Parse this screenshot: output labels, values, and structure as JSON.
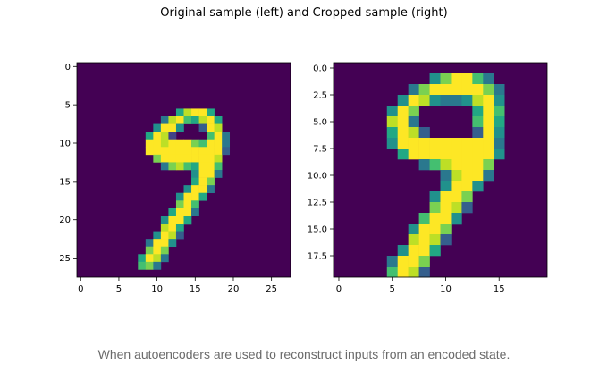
{
  "figure_title": "Original sample (left) and Cropped sample (right)",
  "caption": "When autoencoders are used to reconstruct inputs from an encoded state.",
  "colormap": [
    "#440154",
    "#482475",
    "#414487",
    "#355f8d",
    "#2a788e",
    "#21918c",
    "#22a884",
    "#44bf70",
    "#7ad151",
    "#bddf26",
    "#fde725"
  ],
  "chart_data": [
    {
      "type": "heatmap",
      "title": "Original sample",
      "grid_size": [
        28,
        28
      ],
      "colormap": "viridis",
      "xlim": [
        -0.5,
        27.5
      ],
      "ylim": [
        27.5,
        -0.5
      ],
      "x_ticks": [
        0,
        5,
        10,
        15,
        20,
        25
      ],
      "y_ticks": [
        0,
        5,
        10,
        15,
        20,
        25
      ],
      "x_tick_labels": [
        "0",
        "5",
        "10",
        "15",
        "20",
        "25"
      ],
      "y_tick_labels": [
        "0",
        "5",
        "10",
        "15",
        "20",
        "25"
      ],
      "nonzero_pixels": [
        [
          6,
          13,
          0.6
        ],
        [
          6,
          14,
          0.9
        ],
        [
          6,
          15,
          1
        ],
        [
          6,
          16,
          1
        ],
        [
          6,
          17,
          0.6
        ],
        [
          7,
          11,
          0.4
        ],
        [
          7,
          12,
          0.9
        ],
        [
          7,
          13,
          1
        ],
        [
          7,
          14,
          0.7
        ],
        [
          7,
          15,
          0.6
        ],
        [
          7,
          16,
          0.9
        ],
        [
          7,
          17,
          1
        ],
        [
          7,
          18,
          0.6
        ],
        [
          8,
          10,
          0.5
        ],
        [
          8,
          11,
          1
        ],
        [
          8,
          12,
          1
        ],
        [
          8,
          13,
          0.5
        ],
        [
          8,
          16,
          0.3
        ],
        [
          8,
          17,
          1
        ],
        [
          8,
          18,
          0.9
        ],
        [
          9,
          9,
          0.6
        ],
        [
          9,
          10,
          1
        ],
        [
          9,
          11,
          0.9
        ],
        [
          9,
          12,
          0.2
        ],
        [
          9,
          17,
          0.7
        ],
        [
          9,
          18,
          1
        ],
        [
          9,
          19,
          0.4
        ],
        [
          10,
          9,
          1
        ],
        [
          10,
          10,
          1
        ],
        [
          10,
          11,
          0.9
        ],
        [
          10,
          12,
          1
        ],
        [
          10,
          13,
          1
        ],
        [
          10,
          14,
          1
        ],
        [
          10,
          15,
          0.8
        ],
        [
          10,
          16,
          0.7
        ],
        [
          10,
          17,
          1
        ],
        [
          10,
          18,
          1
        ],
        [
          10,
          19,
          0.4
        ],
        [
          11,
          9,
          1
        ],
        [
          11,
          10,
          1
        ],
        [
          11,
          11,
          1
        ],
        [
          11,
          12,
          1
        ],
        [
          11,
          13,
          1
        ],
        [
          11,
          14,
          1
        ],
        [
          11,
          15,
          1
        ],
        [
          11,
          16,
          1
        ],
        [
          11,
          17,
          1
        ],
        [
          11,
          18,
          1
        ],
        [
          11,
          19,
          0.3
        ],
        [
          12,
          10,
          0.8
        ],
        [
          12,
          11,
          1
        ],
        [
          12,
          12,
          1
        ],
        [
          12,
          13,
          1
        ],
        [
          12,
          14,
          1
        ],
        [
          12,
          15,
          1
        ],
        [
          12,
          16,
          1
        ],
        [
          12,
          17,
          1
        ],
        [
          12,
          18,
          0.9
        ],
        [
          13,
          11,
          0.4
        ],
        [
          13,
          12,
          0.8
        ],
        [
          13,
          13,
          0.9
        ],
        [
          13,
          14,
          0.7
        ],
        [
          13,
          15,
          0.6
        ],
        [
          13,
          16,
          1
        ],
        [
          13,
          17,
          1
        ],
        [
          13,
          18,
          0.7
        ],
        [
          14,
          15,
          0.5
        ],
        [
          14,
          16,
          1
        ],
        [
          14,
          17,
          1
        ],
        [
          14,
          18,
          0.4
        ],
        [
          15,
          15,
          0.6
        ],
        [
          15,
          16,
          1
        ],
        [
          15,
          17,
          0.8
        ],
        [
          16,
          14,
          0.5
        ],
        [
          16,
          15,
          1
        ],
        [
          16,
          16,
          1
        ],
        [
          16,
          17,
          0.4
        ],
        [
          17,
          13,
          0.5
        ],
        [
          17,
          14,
          1
        ],
        [
          17,
          15,
          1
        ],
        [
          17,
          16,
          0.6
        ],
        [
          18,
          13,
          0.8
        ],
        [
          18,
          14,
          1
        ],
        [
          18,
          15,
          0.7
        ],
        [
          19,
          12,
          0.6
        ],
        [
          19,
          13,
          1
        ],
        [
          19,
          14,
          1
        ],
        [
          19,
          15,
          0.4
        ],
        [
          20,
          11,
          0.5
        ],
        [
          20,
          12,
          1
        ],
        [
          20,
          13,
          1
        ],
        [
          20,
          14,
          0.6
        ],
        [
          21,
          11,
          0.9
        ],
        [
          21,
          12,
          1
        ],
        [
          21,
          13,
          0.6
        ],
        [
          22,
          10,
          0.5
        ],
        [
          22,
          11,
          1
        ],
        [
          22,
          12,
          0.9
        ],
        [
          22,
          13,
          0.3
        ],
        [
          23,
          9,
          0.4
        ],
        [
          23,
          10,
          1
        ],
        [
          23,
          11,
          1
        ],
        [
          23,
          12,
          0.5
        ],
        [
          24,
          9,
          0.8
        ],
        [
          24,
          10,
          1
        ],
        [
          24,
          11,
          0.8
        ],
        [
          25,
          8,
          0.6
        ],
        [
          25,
          9,
          1
        ],
        [
          25,
          10,
          0.9
        ],
        [
          25,
          11,
          0.4
        ],
        [
          26,
          8,
          0.7
        ],
        [
          26,
          9,
          0.8
        ],
        [
          26,
          10,
          0.4
        ]
      ]
    },
    {
      "type": "heatmap",
      "title": "Cropped sample",
      "grid_size": [
        20,
        20
      ],
      "colormap": "viridis",
      "xlim": [
        -0.5,
        19.5
      ],
      "ylim": [
        19.5,
        -0.5
      ],
      "x_ticks": [
        0,
        5,
        10,
        15
      ],
      "y_ticks": [
        0,
        2.5,
        5,
        7.5,
        10,
        12.5,
        15,
        17.5
      ],
      "x_tick_labels": [
        "0",
        "5",
        "10",
        "15"
      ],
      "y_tick_labels": [
        "0.0",
        "2.5",
        "5.0",
        "7.5",
        "10.0",
        "12.5",
        "15.0",
        "17.5"
      ],
      "nonzero_pixels": [
        [
          1,
          9,
          0.5
        ],
        [
          1,
          10,
          0.8
        ],
        [
          1,
          11,
          1
        ],
        [
          1,
          12,
          1
        ],
        [
          1,
          13,
          0.7
        ],
        [
          1,
          14,
          0.4
        ],
        [
          2,
          7,
          0.4
        ],
        [
          2,
          8,
          0.8
        ],
        [
          2,
          9,
          1
        ],
        [
          2,
          10,
          1
        ],
        [
          2,
          11,
          1
        ],
        [
          2,
          12,
          1
        ],
        [
          2,
          13,
          1
        ],
        [
          2,
          14,
          0.8
        ],
        [
          2,
          15,
          0.4
        ],
        [
          3,
          6,
          0.5
        ],
        [
          3,
          7,
          1
        ],
        [
          3,
          8,
          0.9
        ],
        [
          3,
          9,
          0.5
        ],
        [
          3,
          10,
          0.4
        ],
        [
          3,
          11,
          0.4
        ],
        [
          3,
          12,
          0.5
        ],
        [
          3,
          13,
          0.9
        ],
        [
          3,
          14,
          1
        ],
        [
          3,
          15,
          0.5
        ],
        [
          4,
          5,
          0.5
        ],
        [
          4,
          6,
          1
        ],
        [
          4,
          7,
          0.8
        ],
        [
          4,
          13,
          0.6
        ],
        [
          4,
          14,
          1
        ],
        [
          4,
          15,
          0.7
        ],
        [
          5,
          5,
          0.9
        ],
        [
          5,
          6,
          1
        ],
        [
          5,
          7,
          0.4
        ],
        [
          5,
          13,
          0.7
        ],
        [
          5,
          14,
          1
        ],
        [
          5,
          15,
          0.6
        ],
        [
          6,
          5,
          0.6
        ],
        [
          6,
          6,
          1
        ],
        [
          6,
          7,
          0.9
        ],
        [
          6,
          8,
          0.3
        ],
        [
          6,
          13,
          0.3
        ],
        [
          6,
          14,
          1
        ],
        [
          6,
          15,
          0.5
        ],
        [
          7,
          5,
          0.5
        ],
        [
          7,
          6,
          1
        ],
        [
          7,
          7,
          1
        ],
        [
          7,
          8,
          1
        ],
        [
          7,
          9,
          1
        ],
        [
          7,
          10,
          1
        ],
        [
          7,
          11,
          1
        ],
        [
          7,
          12,
          1
        ],
        [
          7,
          13,
          1
        ],
        [
          7,
          14,
          1
        ],
        [
          7,
          15,
          0.4
        ],
        [
          8,
          6,
          0.6
        ],
        [
          8,
          7,
          1
        ],
        [
          8,
          8,
          1
        ],
        [
          8,
          9,
          1
        ],
        [
          8,
          10,
          1
        ],
        [
          8,
          11,
          1
        ],
        [
          8,
          12,
          1
        ],
        [
          8,
          13,
          1
        ],
        [
          8,
          14,
          1
        ],
        [
          8,
          15,
          0.5
        ],
        [
          9,
          8,
          0.4
        ],
        [
          9,
          9,
          0.7
        ],
        [
          9,
          10,
          0.9
        ],
        [
          9,
          11,
          1
        ],
        [
          9,
          12,
          1
        ],
        [
          9,
          13,
          1
        ],
        [
          9,
          14,
          0.8
        ],
        [
          10,
          10,
          0.4
        ],
        [
          10,
          11,
          0.9
        ],
        [
          10,
          12,
          1
        ],
        [
          10,
          13,
          1
        ],
        [
          10,
          14,
          0.4
        ],
        [
          11,
          10,
          0.5
        ],
        [
          11,
          11,
          1
        ],
        [
          11,
          12,
          1
        ],
        [
          11,
          13,
          0.5
        ],
        [
          12,
          9,
          0.5
        ],
        [
          12,
          10,
          1
        ],
        [
          12,
          11,
          1
        ],
        [
          12,
          12,
          0.8
        ],
        [
          13,
          9,
          0.8
        ],
        [
          13,
          10,
          1
        ],
        [
          13,
          11,
          0.9
        ],
        [
          13,
          12,
          0.3
        ],
        [
          14,
          8,
          0.7
        ],
        [
          14,
          9,
          1
        ],
        [
          14,
          10,
          1
        ],
        [
          14,
          11,
          0.5
        ],
        [
          15,
          7,
          0.5
        ],
        [
          15,
          8,
          1
        ],
        [
          15,
          9,
          1
        ],
        [
          15,
          10,
          0.8
        ],
        [
          16,
          7,
          0.9
        ],
        [
          16,
          8,
          1
        ],
        [
          16,
          9,
          0.9
        ],
        [
          16,
          10,
          0.3
        ],
        [
          17,
          6,
          0.5
        ],
        [
          17,
          7,
          1
        ],
        [
          17,
          8,
          1
        ],
        [
          17,
          9,
          0.6
        ],
        [
          18,
          5,
          0.4
        ],
        [
          18,
          6,
          1
        ],
        [
          18,
          7,
          1
        ],
        [
          18,
          8,
          0.8
        ],
        [
          19,
          5,
          0.7
        ],
        [
          19,
          6,
          1
        ],
        [
          19,
          7,
          0.9
        ],
        [
          19,
          8,
          0.3
        ]
      ]
    }
  ]
}
